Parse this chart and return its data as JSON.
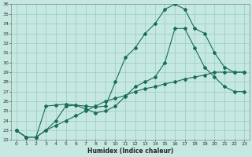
{
  "xlabel": "Humidex (Indice chaleur)",
  "ylabel": "",
  "xlim": [
    -0.5,
    23.5
  ],
  "ylim": [
    22,
    36
  ],
  "yticks": [
    22,
    23,
    24,
    25,
    26,
    27,
    28,
    29,
    30,
    31,
    32,
    33,
    34,
    35,
    36
  ],
  "xticks": [
    0,
    1,
    2,
    3,
    4,
    5,
    6,
    7,
    8,
    9,
    10,
    11,
    12,
    13,
    14,
    15,
    16,
    17,
    18,
    19,
    20,
    21,
    22,
    23
  ],
  "bg_color": "#c5e8e0",
  "grid_color": "#a0cfc8",
  "line_color": "#1a6b5a",
  "line1_x": [
    0,
    1,
    2,
    3,
    4,
    5,
    6,
    7,
    8,
    9,
    10,
    11,
    12,
    13,
    14,
    15,
    16,
    17,
    18,
    19,
    20,
    21,
    22,
    23
  ],
  "line1_y": [
    23.0,
    22.3,
    22.3,
    23.0,
    24.0,
    25.5,
    25.6,
    25.5,
    25.4,
    25.5,
    28.0,
    30.5,
    31.5,
    33.0,
    34.0,
    35.5,
    36.0,
    35.5,
    33.5,
    33.0,
    31.0,
    29.5,
    29.0,
    29.0
  ],
  "line2_x": [
    0,
    1,
    2,
    3,
    4,
    5,
    6,
    7,
    8,
    9,
    10,
    11,
    12,
    13,
    14,
    15,
    16,
    17,
    18,
    19,
    20,
    21,
    22,
    23
  ],
  "line2_y": [
    23.0,
    22.3,
    22.3,
    25.5,
    25.6,
    25.7,
    25.6,
    25.2,
    24.8,
    25.0,
    25.5,
    26.5,
    27.5,
    28.0,
    28.5,
    30.0,
    33.5,
    33.5,
    31.5,
    29.5,
    28.5,
    27.5,
    27.0,
    27.0
  ],
  "line3_x": [
    0,
    1,
    2,
    3,
    4,
    5,
    6,
    7,
    8,
    9,
    10,
    11,
    12,
    13,
    14,
    15,
    16,
    17,
    18,
    19,
    20,
    21,
    22,
    23
  ],
  "line3_y": [
    23.0,
    22.3,
    22.3,
    23.0,
    23.5,
    24.0,
    24.5,
    25.0,
    25.5,
    26.0,
    26.3,
    26.6,
    27.0,
    27.3,
    27.5,
    27.8,
    28.0,
    28.3,
    28.5,
    28.7,
    29.0,
    29.0,
    29.0,
    29.0
  ]
}
